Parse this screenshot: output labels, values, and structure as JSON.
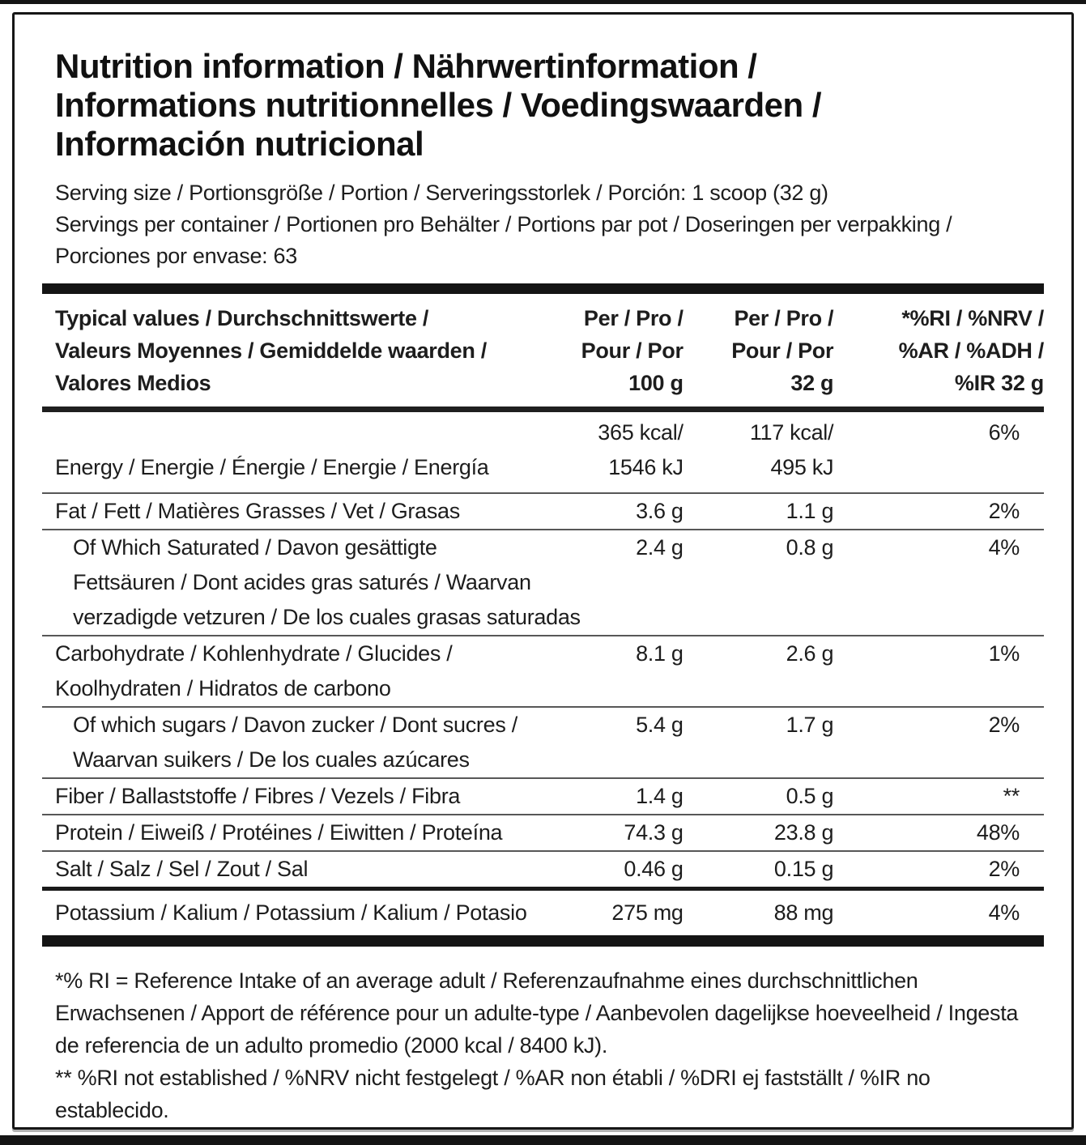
{
  "label": {
    "title_lines": [
      "Nutrition information / Nährwertinformation /",
      "Informations nutritionnelles / Voedingswaarden /",
      "Información nutricional"
    ],
    "serving": {
      "size": "Serving size / Portionsgröße / Portion / Serveringsstorlek / Porción: 1 scoop (32 g)",
      "per_container": "Servings per container / Portionen pro Behälter / Portions par pot / Doseringen per verpakking / Porciones por envase: 63"
    },
    "table": {
      "header": {
        "typical_values_lines": [
          "Typical values / Durchschnittswerte /",
          "Valeurs Moyennes / Gemiddelde waarden /",
          "Valores Medios"
        ],
        "per100_lines": [
          "Per / Pro /",
          "Pour / Por",
          "100 g"
        ],
        "per32_lines": [
          "Per / Pro /",
          "Pour / Por",
          "32 g"
        ],
        "ri_lines": [
          "*%RI / %NRV /",
          "%AR / %ADH /",
          "%IR 32 g"
        ]
      },
      "rows": {
        "energy": {
          "label": "Energy / Energie / Énergie / Energie / Energía",
          "per100_kcal": "365 kcal/",
          "per100_kj": "1546 kJ",
          "per32_kcal": "117 kcal/",
          "per32_kj": "495 kJ",
          "ri": "6%"
        },
        "fat": {
          "label": "Fat / Fett / Matières Grasses / Vet / Grasas",
          "per100": "3.6 g",
          "per32": "1.1 g",
          "ri": "2%"
        },
        "saturated": {
          "label_lines": [
            "Of Which Saturated / Davon gesättigte",
            "Fettsäuren / Dont acides gras saturés / Waarvan",
            "verzadigde vetzuren / De los cuales grasas saturadas"
          ],
          "per100": "2.4 g",
          "per32": "0.8 g",
          "ri": "4%"
        },
        "carbohydrate": {
          "label_lines": [
            "Carbohydrate / Kohlenhydrate / Glucides /",
            "Koolhydraten / Hidratos de carbono"
          ],
          "per100": "8.1 g",
          "per32": "2.6 g",
          "ri": "1%"
        },
        "sugars": {
          "label_lines": [
            "Of which sugars / Davon zucker / Dont sucres /",
            "Waarvan suikers / De los cuales azúcares"
          ],
          "per100": "5.4 g",
          "per32": "1.7 g",
          "ri": "2%"
        },
        "fiber": {
          "label": "Fiber / Ballaststoffe / Fibres / Vezels / Fibra",
          "per100": "1.4 g",
          "per32": "0.5 g",
          "ri": "**"
        },
        "protein": {
          "label": "Protein / Eiweiß / Protéines / Eiwitten / Proteína",
          "per100": "74.3 g",
          "per32": "23.8 g",
          "ri": "48%"
        },
        "salt": {
          "label": "Salt / Salz / Sel / Zout / Sal",
          "per100": "0.46 g",
          "per32": "0.15 g",
          "ri": "2%"
        },
        "potassium": {
          "label": "Potassium / Kalium / Potassium / Kalium / Potasio",
          "per100": "275 mg",
          "per32": "88 mg",
          "ri": "4%"
        }
      }
    },
    "footnotes": {
      "ri_definition": "*% RI = Reference Intake of an average adult / Referenzaufnahme eines durchschnittlichen Erwachsenen / Apport de référence pour un adulte-type / Aanbevolen dagelijkse hoeveelheid / Ingesta de referencia de un adulto promedio (2000 kcal / 8400 kJ).",
      "not_established": "** %RI not established / %NRV nicht festgelegt / %AR non établi / %DRI ej fastställt / %IR no establecido."
    },
    "colors": {
      "text": "#1d1d1d",
      "heavy_bar": "#141414",
      "thin_rule": "#575757",
      "background": "#ffffff"
    }
  }
}
